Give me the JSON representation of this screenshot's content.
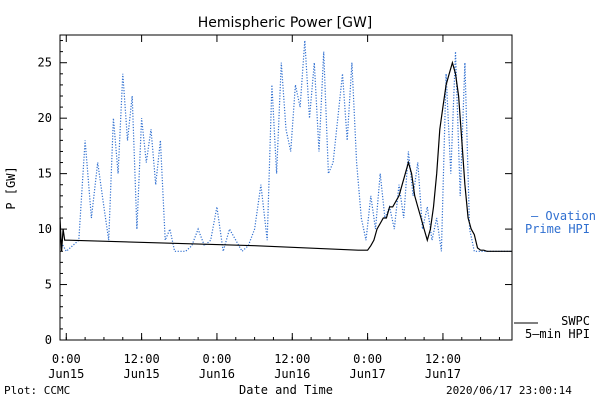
{
  "chart_data": {
    "type": "line",
    "title": "Hemispheric Power [GW]",
    "xlabel": "Date and Time",
    "ylabel": "P [GW]",
    "xlim": [
      "2020-06-14T23:00",
      "2020-06-17T23:00"
    ],
    "ylim": [
      0,
      27.5
    ],
    "y_ticks": [
      0,
      5,
      10,
      15,
      20,
      25
    ],
    "x_ticks": [
      {
        "t": "2020-06-15T00:00",
        "label_top": "0:00",
        "label_bottom": "Jun15"
      },
      {
        "t": "2020-06-15T12:00",
        "label_top": "12:00",
        "label_bottom": "Jun15"
      },
      {
        "t": "2020-06-16T00:00",
        "label_top": "0:00",
        "label_bottom": "Jun16"
      },
      {
        "t": "2020-06-16T12:00",
        "label_top": "12:00",
        "label_bottom": "Jun16"
      },
      {
        "t": "2020-06-17T00:00",
        "label_top": "0:00",
        "label_bottom": "Jun17"
      },
      {
        "t": "2020-06-17T12:00",
        "label_top": "12:00",
        "label_bottom": "Jun17"
      }
    ],
    "grid": false,
    "legend_placement": "right",
    "series": [
      {
        "name": "SWPC 5-min HPI",
        "legend_lines": [
          "SWPC",
          "5–min HPI"
        ],
        "color": "#000000",
        "style": "solid",
        "x": [
          "2020-06-14T23:00",
          "2020-06-14T23:15",
          "2020-06-14T23:30",
          "2020-06-14T23:45",
          "2020-06-15T00:00",
          "2020-06-15T00:20",
          "2020-06-16T06:00",
          "2020-06-16T22:30",
          "2020-06-16T23:00",
          "2020-06-17T00:00",
          "2020-06-17T00:30",
          "2020-06-17T01:00",
          "2020-06-17T01:30",
          "2020-06-17T02:00",
          "2020-06-17T02:30",
          "2020-06-17T03:00",
          "2020-06-17T03:30",
          "2020-06-17T04:00",
          "2020-06-17T05:00",
          "2020-06-17T06:00",
          "2020-06-17T06:30",
          "2020-06-17T07:00",
          "2020-06-17T07:30",
          "2020-06-17T08:00",
          "2020-06-17T08:30",
          "2020-06-17T09:00",
          "2020-06-17T09:30",
          "2020-06-17T10:00",
          "2020-06-17T10:30",
          "2020-06-17T11:00",
          "2020-06-17T11:30",
          "2020-06-17T12:00",
          "2020-06-17T12:30",
          "2020-06-17T13:00",
          "2020-06-17T13:30",
          "2020-06-17T14:00",
          "2020-06-17T14:30",
          "2020-06-17T15:00",
          "2020-06-17T15:30",
          "2020-06-17T16:00",
          "2020-06-17T16:30",
          "2020-06-17T17:00",
          "2020-06-17T17:30",
          "2020-06-17T18:00",
          "2020-06-17T18:30",
          "2020-06-17T19:00",
          "2020-06-17T23:00"
        ],
        "y": [
          11,
          8,
          10,
          9,
          9,
          9,
          8.5,
          8.1,
          8.1,
          8.1,
          8.5,
          9,
          10,
          10.5,
          11,
          11,
          12,
          12,
          13,
          15,
          16,
          15,
          13,
          12,
          11,
          10,
          9,
          10,
          12,
          15,
          19,
          21,
          23,
          24,
          25,
          24,
          22,
          18,
          14,
          11,
          10,
          9.5,
          8.3,
          8.1,
          8.1,
          8.0,
          8.0
        ]
      },
      {
        "name": "Ovation Prime HPI",
        "legend_lines": [
          "– Ovation",
          "Prime HPI"
        ],
        "color": "#2f6fd0",
        "style": "dotted",
        "x": [
          "2020-06-14T23:00",
          "2020-06-14T23:30",
          "2020-06-15T00:00",
          "2020-06-15T01:00",
          "2020-06-15T02:00",
          "2020-06-15T03:00",
          "2020-06-15T04:00",
          "2020-06-15T05:00",
          "2020-06-15T06:00",
          "2020-06-15T06:45",
          "2020-06-15T07:30",
          "2020-06-15T08:15",
          "2020-06-15T09:00",
          "2020-06-15T09:45",
          "2020-06-15T10:30",
          "2020-06-15T11:15",
          "2020-06-15T12:00",
          "2020-06-15T12:45",
          "2020-06-15T13:30",
          "2020-06-15T14:15",
          "2020-06-15T15:00",
          "2020-06-15T15:45",
          "2020-06-15T16:30",
          "2020-06-15T17:15",
          "2020-06-15T18:00",
          "2020-06-15T19:00",
          "2020-06-15T20:00",
          "2020-06-15T21:00",
          "2020-06-15T22:00",
          "2020-06-15T23:00",
          "2020-06-16T00:00",
          "2020-06-16T01:00",
          "2020-06-16T02:00",
          "2020-06-16T03:00",
          "2020-06-16T04:00",
          "2020-06-16T05:00",
          "2020-06-16T06:00",
          "2020-06-16T07:00",
          "2020-06-16T08:00",
          "2020-06-16T08:45",
          "2020-06-16T09:30",
          "2020-06-16T10:15",
          "2020-06-16T11:00",
          "2020-06-16T11:45",
          "2020-06-16T12:30",
          "2020-06-16T13:15",
          "2020-06-16T14:00",
          "2020-06-16T14:45",
          "2020-06-16T15:30",
          "2020-06-16T16:15",
          "2020-06-16T17:00",
          "2020-06-16T17:45",
          "2020-06-16T18:30",
          "2020-06-16T19:15",
          "2020-06-16T20:00",
          "2020-06-16T20:45",
          "2020-06-16T21:30",
          "2020-06-16T22:15",
          "2020-06-16T23:00",
          "2020-06-16T23:45",
          "2020-06-17T00:30",
          "2020-06-17T01:15",
          "2020-06-17T02:00",
          "2020-06-17T02:45",
          "2020-06-17T03:30",
          "2020-06-17T04:15",
          "2020-06-17T05:00",
          "2020-06-17T05:45",
          "2020-06-17T06:30",
          "2020-06-17T07:15",
          "2020-06-17T08:00",
          "2020-06-17T08:45",
          "2020-06-17T09:30",
          "2020-06-17T10:15",
          "2020-06-17T11:00",
          "2020-06-17T11:45",
          "2020-06-17T12:30",
          "2020-06-17T13:15",
          "2020-06-17T14:00",
          "2020-06-17T14:45",
          "2020-06-17T15:30",
          "2020-06-17T16:15",
          "2020-06-17T17:00",
          "2020-06-17T18:00",
          "2020-06-17T20:00",
          "2020-06-17T23:00"
        ],
        "y": [
          9,
          8.5,
          8,
          8.5,
          9,
          18,
          11,
          16,
          12,
          9,
          20,
          15,
          24,
          18,
          22,
          10,
          20,
          16,
          19,
          14,
          18,
          9,
          10,
          8,
          8,
          8,
          8.5,
          10,
          8.5,
          9,
          12,
          8,
          10,
          9,
          8,
          8.5,
          10,
          14,
          9,
          23,
          15,
          25,
          19,
          17,
          23,
          21,
          27,
          20,
          25,
          17,
          26,
          15,
          16,
          20,
          24,
          18,
          25,
          16,
          11,
          9,
          13,
          10,
          15,
          11,
          12,
          10,
          14,
          11,
          17,
          13,
          16,
          10,
          12,
          9,
          11,
          8,
          24,
          15,
          26,
          13,
          25,
          10,
          8,
          8,
          8,
          8
        ]
      }
    ]
  },
  "footer": {
    "plot_credit": "Plot: CCMC",
    "timestamp": "2020/06/17 23:00:14"
  }
}
